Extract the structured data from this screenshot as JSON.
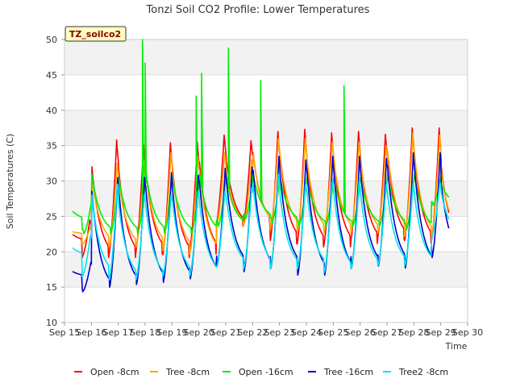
{
  "chart_data": {
    "type": "line",
    "title": "Tonzi Soil CO2 Profile: Lower Temperatures",
    "xlabel": "Time",
    "ylabel": "Soil Temperatures (C)",
    "badge": "TZ_soilco2",
    "ylim": [
      10,
      50
    ],
    "yticks": [
      "10",
      "15",
      "20",
      "25",
      "30",
      "35",
      "40",
      "45",
      "50"
    ],
    "xlim": [
      15,
      30
    ],
    "xticks": [
      "Sep 15",
      "Sep 16",
      "Sep 17",
      "Sep 18",
      "Sep 19",
      "Sep 20",
      "Sep 21",
      "Sep 22",
      "Sep 23",
      "Sep 24",
      "Sep 25",
      "Sep 26",
      "Sep 27",
      "Sep 28",
      "Sep 29",
      "Sep 30"
    ],
    "grid": true,
    "legend_position": "bottom",
    "x_start_day": 15.3,
    "x_end_day": 29.3,
    "series": [
      {
        "name": "Open -8cm",
        "color": "#ff0000",
        "daily_max": [
          24.5,
          35.8,
          35.2,
          35.4,
          35.5,
          36.5,
          35.7,
          37.0,
          37.3,
          36.8,
          37.0,
          36.6,
          37.5,
          37.5,
          35.3
        ],
        "daily_min": [
          21.5,
          19.0,
          19.0,
          19.5,
          19.0,
          19.5,
          23.5,
          23.5,
          21.0,
          20.5,
          20.5,
          21.0,
          21.5,
          21.0,
          21.0
        ],
        "spikes": []
      },
      {
        "name": "Tree -8cm",
        "color": "#ffa500",
        "daily_max": [
          23.5,
          32.5,
          32.3,
          34.0,
          33.5,
          34.0,
          33.0,
          36.0,
          36.0,
          35.5,
          35.5,
          35.0,
          36.8,
          36.5,
          33.5
        ],
        "daily_min": [
          22.5,
          21.0,
          20.5,
          20.5,
          20.0,
          19.5,
          23.5,
          23.5,
          23.0,
          22.5,
          22.5,
          22.5,
          22.5,
          22.0,
          22.0
        ],
        "spikes": []
      },
      {
        "name": "Open -16cm",
        "color": "#00ee00",
        "daily_max": [
          27.5,
          31.0,
          30.5,
          31.5,
          30.5,
          31.0,
          30.5,
          31.0,
          30.5,
          30.5,
          30.5,
          30.5,
          31.0,
          31.0,
          29.5
        ],
        "daily_min": [
          24.5,
          22.5,
          22.5,
          22.5,
          22.5,
          22.5,
          23.5,
          24.5,
          24.0,
          23.5,
          23.5,
          23.5,
          23.5,
          23.0,
          26.5
        ],
        "spikes": [
          [
            17.9,
            50.0
          ],
          [
            18.0,
            46.7
          ],
          [
            19.9,
            42.0
          ],
          [
            20.1,
            45.2
          ],
          [
            21.1,
            48.8
          ],
          [
            22.3,
            44.2
          ],
          [
            25.4,
            43.5
          ]
        ]
      },
      {
        "name": "Tree -16cm",
        "color": "#0000cc",
        "daily_max": [
          18.5,
          30.5,
          30.5,
          31.2,
          30.8,
          31.8,
          32.0,
          33.5,
          33.0,
          33.5,
          33.5,
          33.2,
          34.0,
          34.0,
          31.0
        ],
        "daily_min": [
          16.5,
          14.3,
          14.8,
          15.2,
          15.5,
          16.0,
          17.8,
          17.0,
          17.5,
          16.5,
          16.5,
          17.5,
          17.8,
          17.5,
          19.0
        ],
        "spikes": []
      },
      {
        "name": "Tree2 -8cm",
        "color": "#00e5ee",
        "daily_max": [
          22.5,
          30.0,
          28.5,
          28.5,
          29.0,
          29.0,
          29.5,
          31.5,
          30.0,
          30.5,
          30.5,
          30.0,
          30.0,
          30.0,
          29.5
        ],
        "daily_min": [
          19.5,
          16.5,
          16.0,
          16.0,
          16.5,
          16.5,
          17.8,
          17.5,
          17.5,
          17.5,
          17.0,
          17.5,
          18.0,
          18.0,
          22.0
        ],
        "spikes": []
      }
    ]
  }
}
